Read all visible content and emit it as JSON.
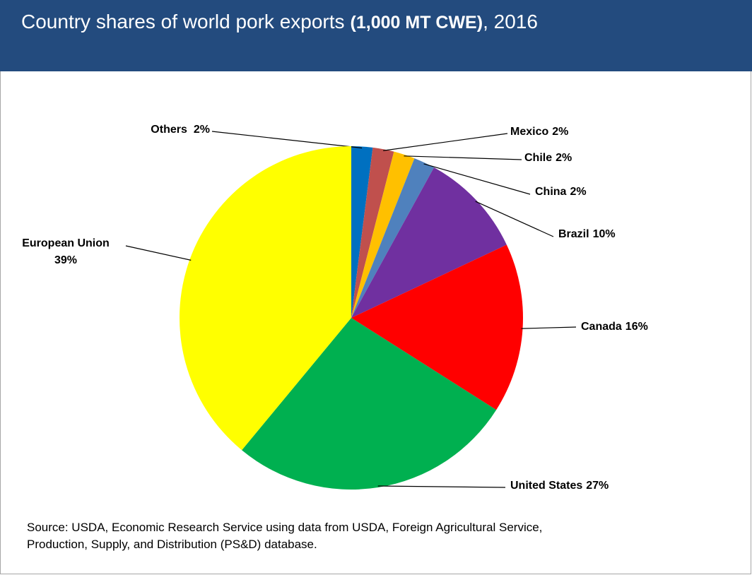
{
  "chart_data": {
    "type": "pie",
    "title": "Country shares of world pork exports",
    "title_units": "(1,000 MT CWE)",
    "title_suffix": ", 2016",
    "categories": [
      "Others",
      "Mexico",
      "Chile",
      "China",
      "Brazil",
      "Canada",
      "United States",
      "European Union"
    ],
    "values": [
      2,
      2,
      2,
      2,
      10,
      16,
      27,
      39
    ],
    "value_labels": [
      "2%",
      "2%",
      "2%",
      "2%",
      "10%",
      "16%",
      "27%",
      "39%"
    ],
    "colors": [
      "#0070c0",
      "#c0504d",
      "#ffc000",
      "#4f81bd",
      "#7030a0",
      "#ff0000",
      "#00b050",
      "#ffff00"
    ],
    "source": [
      "Source: USDA, Economic Research Service using data from USDA, Foreign Agricultural Service,",
      "Production, Supply, and Distribution (PS&D) database."
    ]
  }
}
